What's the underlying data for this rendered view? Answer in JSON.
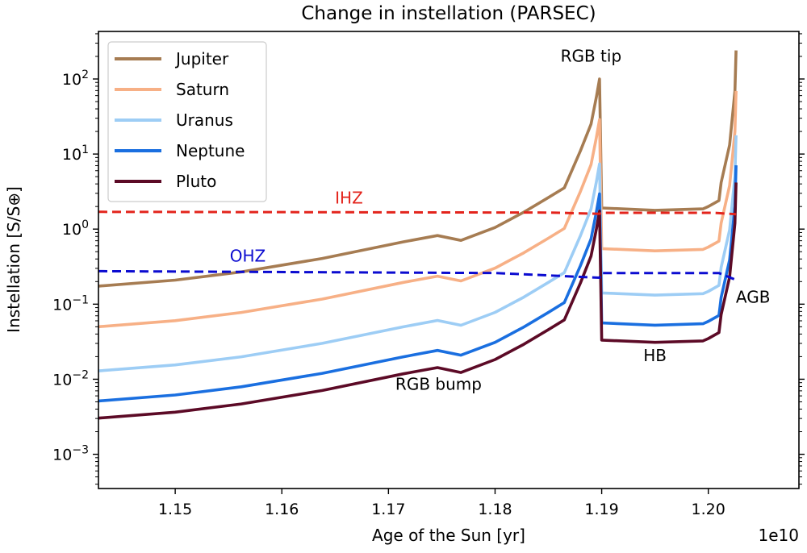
{
  "chart_data": {
    "type": "line",
    "title": "Change in instellation (PARSEC)",
    "xlabel": "Age of the Sun [yr]",
    "ylabel": "Instellation [S/S⊕]",
    "x_offset_label": "1e10",
    "xscale": "linear",
    "yscale": "log",
    "xlim": [
      1.1428,
      1.2085
    ],
    "ylim": [
      0.00035,
      430
    ],
    "xticks": [
      1.15,
      1.16,
      1.17,
      1.18,
      1.19,
      1.2
    ],
    "xtick_labels": [
      "1.15",
      "1.16",
      "1.17",
      "1.18",
      "1.19",
      "1.20"
    ],
    "yticks": [
      -3,
      -2,
      -1,
      0,
      1,
      2
    ],
    "ytick_labels": [
      {
        "base": "10",
        "exp": "−3"
      },
      {
        "base": "10",
        "exp": "−2"
      },
      {
        "base": "10",
        "exp": "−1"
      },
      {
        "base": "10",
        "exp": "0"
      },
      {
        "base": "10",
        "exp": "1"
      },
      {
        "base": "10",
        "exp": "2"
      }
    ],
    "grid": false,
    "legend_position": "top-left",
    "x": [
      1.1428,
      1.15,
      1.1562,
      1.1638,
      1.1714,
      1.1746,
      1.1768,
      1.18,
      1.1827,
      1.185,
      1.1865,
      1.188,
      1.189,
      1.1895,
      1.1898,
      1.19,
      1.195,
      1.1995,
      1.2,
      1.201,
      1.2012,
      1.202,
      1.2025,
      1.2026
    ],
    "series": [
      {
        "name": "Jupiter",
        "color": "#a67c52",
        "values": [
          0.174,
          0.209,
          0.269,
          0.407,
          0.676,
          0.82,
          0.708,
          1.05,
          1.68,
          2.63,
          3.55,
          11.0,
          25.1,
          57.5,
          100,
          1.91,
          1.78,
          1.86,
          2.0,
          2.4,
          4.17,
          13.2,
          69.2,
          240
        ]
      },
      {
        "name": "Saturn",
        "color": "#f7b086",
        "values": [
          0.0501,
          0.0602,
          0.0775,
          0.117,
          0.195,
          0.236,
          0.204,
          0.302,
          0.484,
          0.757,
          1.02,
          3.17,
          7.23,
          16.6,
          28.8,
          0.55,
          0.513,
          0.536,
          0.576,
          0.691,
          1.2,
          3.8,
          19.9,
          69.1
        ]
      },
      {
        "name": "Uranus",
        "color": "#9dcdf5",
        "values": [
          0.0129,
          0.0155,
          0.0199,
          0.0301,
          0.05,
          0.0607,
          0.0524,
          0.0777,
          0.124,
          0.195,
          0.263,
          0.814,
          1.86,
          4.26,
          7.4,
          0.141,
          0.132,
          0.138,
          0.148,
          0.178,
          0.309,
          0.977,
          5.12,
          17.8
        ]
      },
      {
        "name": "Neptune",
        "color": "#1a6fe0",
        "values": [
          0.00513,
          0.00617,
          0.00794,
          0.012,
          0.0199,
          0.0242,
          0.0209,
          0.031,
          0.0496,
          0.0776,
          0.105,
          0.325,
          0.74,
          1.7,
          2.95,
          0.0563,
          0.0525,
          0.0549,
          0.059,
          0.0708,
          0.123,
          0.389,
          2.04,
          7.08
        ]
      },
      {
        "name": "Pluto",
        "color": "#5c0a26",
        "values": [
          0.00303,
          0.00364,
          0.00468,
          0.00708,
          0.0118,
          0.0143,
          0.0123,
          0.0183,
          0.0292,
          0.0458,
          0.0618,
          0.191,
          0.437,
          1.0,
          1.74,
          0.0332,
          0.031,
          0.0324,
          0.0348,
          0.0418,
          0.0726,
          0.23,
          1.2,
          4.18
        ]
      }
    ],
    "reference_lines": [
      {
        "label": "IHZ",
        "color": "#e3241c",
        "style": "dashed",
        "x": [
          1.1428,
          1.185,
          1.1898,
          1.19,
          1.2005,
          1.2026
        ],
        "values": [
          1.7,
          1.66,
          1.6,
          1.65,
          1.65,
          1.58
        ]
      },
      {
        "label": "OHZ",
        "color": "#0b0bd0",
        "style": "dashed",
        "x": [
          1.1428,
          1.18,
          1.1898,
          1.19,
          1.201,
          1.2026
        ],
        "values": [
          0.275,
          0.26,
          0.225,
          0.26,
          0.26,
          0.21
        ]
      }
    ],
    "annotations": [
      {
        "text": "RGB tip",
        "x": 1.189,
        "y": 170
      },
      {
        "text": "RGB bump",
        "x": 1.1747,
        "y": 0.0072
      },
      {
        "text": "HB",
        "x": 1.195,
        "y": 0.0175
      },
      {
        "text": "AGB",
        "x": 1.2042,
        "y": 0.105
      },
      {
        "text": "IHZ",
        "x": 1.1663,
        "y": 2.2
      },
      {
        "text": "OHZ",
        "x": 1.1568,
        "y": 0.37
      }
    ]
  }
}
